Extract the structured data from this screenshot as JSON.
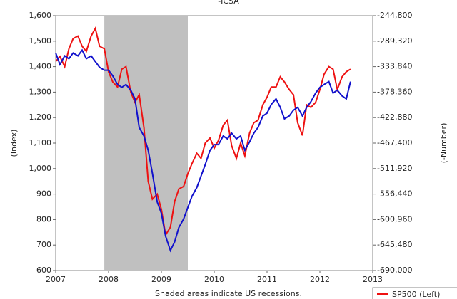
{
  "chart_data": {
    "type": "line",
    "title": "-ICSA",
    "x": [
      2007,
      2007.08,
      2007.17,
      2007.25,
      2007.33,
      2007.42,
      2007.5,
      2007.58,
      2007.67,
      2007.75,
      2007.83,
      2007.92,
      2008,
      2008.08,
      2008.17,
      2008.25,
      2008.33,
      2008.42,
      2008.5,
      2008.58,
      2008.67,
      2008.75,
      2008.83,
      2008.92,
      2009,
      2009.08,
      2009.17,
      2009.25,
      2009.33,
      2009.42,
      2009.5,
      2009.58,
      2009.67,
      2009.75,
      2009.83,
      2009.92,
      2010,
      2010.08,
      2010.17,
      2010.25,
      2010.33,
      2010.42,
      2010.5,
      2010.58,
      2010.67,
      2010.75,
      2010.83,
      2010.92,
      2011,
      2011.08,
      2011.17,
      2011.25,
      2011.33,
      2011.42,
      2011.5,
      2011.58,
      2011.67,
      2011.75,
      2011.83,
      2011.92,
      2012,
      2012.08,
      2012.17,
      2012.25,
      2012.33,
      2012.42,
      2012.5,
      2012.58
    ],
    "series": [
      {
        "name": "SP500 (Left)",
        "color": "#ee1111",
        "values": [
          1420,
          1440,
          1400,
          1470,
          1510,
          1520,
          1480,
          1460,
          1520,
          1550,
          1480,
          1470,
          1380,
          1340,
          1320,
          1390,
          1400,
          1300,
          1260,
          1290,
          1160,
          950,
          880,
          900,
          840,
          740,
          770,
          870,
          920,
          930,
          980,
          1020,
          1060,
          1040,
          1100,
          1120,
          1080,
          1110,
          1170,
          1190,
          1090,
          1040,
          1100,
          1050,
          1140,
          1180,
          1190,
          1250,
          1280,
          1320,
          1320,
          1360,
          1340,
          1310,
          1290,
          1180,
          1130,
          1250,
          1240,
          1260,
          1310,
          1370,
          1400,
          1390,
          1310,
          1360,
          1380,
          1390
        ]
      },
      {
        "color": "#1111cc",
        "axis": "y2",
        "values": [
          -310000,
          -330000,
          -315000,
          -320000,
          -310000,
          -315000,
          -305000,
          -320000,
          -315000,
          -325000,
          -335000,
          -340000,
          -340000,
          -350000,
          -365000,
          -370000,
          -365000,
          -375000,
          -390000,
          -440000,
          -455000,
          -480000,
          -520000,
          -570000,
          -590000,
          -630000,
          -655000,
          -640000,
          -615000,
          -600000,
          -580000,
          -560000,
          -545000,
          -525000,
          -505000,
          -480000,
          -470000,
          -470000,
          -455000,
          -460000,
          -450000,
          -460000,
          -455000,
          -480000,
          -465000,
          -450000,
          -440000,
          -420000,
          -415000,
          -400000,
          -390000,
          -405000,
          -425000,
          -420000,
          -410000,
          -405000,
          -420000,
          -405000,
          -395000,
          -380000,
          -370000,
          -365000,
          -360000,
          -380000,
          -375000,
          -385000,
          -390000,
          -360000
        ]
      }
    ],
    "xlim": [
      2007,
      2013
    ],
    "xticks": [
      2007,
      2008,
      2009,
      2010,
      2011,
      2012,
      2013
    ],
    "ylim": [
      600,
      1600
    ],
    "yticks": [
      600,
      700,
      800,
      900,
      {
        "value": 1000,
        "label": "1,000"
      },
      {
        "value": 1100,
        "label": "1,100"
      },
      {
        "value": 1200,
        "label": "1,200"
      },
      {
        "value": 1300,
        "label": "1,300"
      },
      {
        "value": 1400,
        "label": "1,400"
      },
      {
        "value": 1500,
        "label": "1,500"
      },
      {
        "value": 1600,
        "label": "1,600"
      }
    ],
    "y2lim": [
      -690000,
      -244800
    ],
    "y2ticks": [
      {
        "value": -690000,
        "label": "-690,000"
      },
      {
        "value": -645480,
        "label": "-645,480"
      },
      {
        "value": -600960,
        "label": "-600,960"
      },
      {
        "value": -556440,
        "label": "-556,440"
      },
      {
        "value": -511920,
        "label": "-511,920"
      },
      {
        "value": -467400,
        "label": "-467,400"
      },
      {
        "value": -422880,
        "label": "-422,880"
      },
      {
        "value": -378360,
        "label": "-378,360"
      },
      {
        "value": -333840,
        "label": "-333,840"
      },
      {
        "value": -289320,
        "label": "-289,320"
      },
      {
        "value": -244800,
        "label": "-244,800"
      }
    ],
    "ylabel": "(Index)",
    "y2label": "(-Number)",
    "recessions": [
      [
        2007.92,
        2009.5
      ]
    ],
    "recession_color": "#c0c0c0",
    "note": "Shaded areas indicate US recessions.",
    "legend": "bottom-right"
  }
}
